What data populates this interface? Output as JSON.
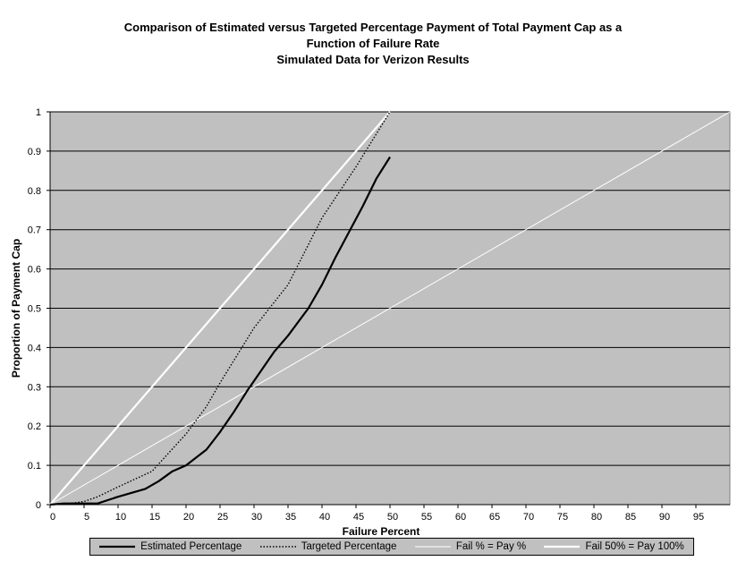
{
  "chart_data": {
    "type": "line",
    "title": [
      "Comparison of Estimated versus Targeted Percentage Payment of Total Payment Cap as a",
      "Function of Failure Rate",
      "Simulated Data for Verizon Results"
    ],
    "xlabel": "Failure Percent",
    "ylabel": "Proportion of Payment Cap",
    "xlim": [
      0,
      100
    ],
    "ylim": [
      0,
      1
    ],
    "x_ticks": [
      0,
      5,
      10,
      15,
      20,
      25,
      30,
      35,
      40,
      45,
      50,
      55,
      60,
      65,
      70,
      75,
      80,
      85,
      90,
      95
    ],
    "y_ticks": [
      0,
      0.1,
      0.2,
      0.3,
      0.4,
      0.5,
      0.6,
      0.7,
      0.8,
      0.9,
      1
    ],
    "grid": "horizontal",
    "legend_placement": "bottom",
    "background_color": "#c0c0c0",
    "series": [
      {
        "name": "Estimated Percentage",
        "color": "#000000",
        "style": "solid-thick",
        "points": [
          [
            0,
            0
          ],
          [
            2,
            0.003
          ],
          [
            5,
            0.003
          ],
          [
            7,
            0.003
          ],
          [
            10,
            0.02
          ],
          [
            12,
            0.03
          ],
          [
            14,
            0.04
          ],
          [
            16,
            0.06
          ],
          [
            18,
            0.085
          ],
          [
            20,
            0.1
          ],
          [
            23,
            0.14
          ],
          [
            25,
            0.185
          ],
          [
            27,
            0.235
          ],
          [
            29,
            0.29
          ],
          [
            31,
            0.34
          ],
          [
            33,
            0.39
          ],
          [
            35,
            0.43
          ],
          [
            38,
            0.5
          ],
          [
            40,
            0.56
          ],
          [
            42,
            0.63
          ],
          [
            44,
            0.695
          ],
          [
            46,
            0.76
          ],
          [
            48,
            0.83
          ],
          [
            50,
            0.885
          ]
        ]
      },
      {
        "name": "Targeted Percentage",
        "color": "#000000",
        "style": "dotted",
        "points": [
          [
            0,
            0
          ],
          [
            3,
            0.003
          ],
          [
            5,
            0.008
          ],
          [
            7,
            0.02
          ],
          [
            10,
            0.045
          ],
          [
            15,
            0.085
          ],
          [
            20,
            0.18
          ],
          [
            23,
            0.25
          ],
          [
            25,
            0.31
          ],
          [
            30,
            0.45
          ],
          [
            35,
            0.56
          ],
          [
            40,
            0.73
          ],
          [
            45,
            0.86
          ],
          [
            50,
            1.0
          ]
        ]
      },
      {
        "name": "Fail % = Pay %",
        "color": "#ffffff",
        "style": "solid-thin",
        "points": [
          [
            0,
            0
          ],
          [
            100,
            1
          ]
        ]
      },
      {
        "name": "Fail 50% = Pay 100%",
        "color": "#ffffff",
        "style": "solid-thick",
        "points": [
          [
            0,
            0
          ],
          [
            50,
            1
          ]
        ]
      }
    ]
  }
}
